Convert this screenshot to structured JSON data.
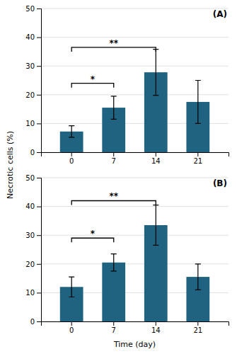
{
  "chart_data": [
    {
      "type": "bar",
      "title": "(A)",
      "categories": [
        "0",
        "7",
        "14",
        "21"
      ],
      "values": [
        7.2,
        15.5,
        27.8,
        17.5
      ],
      "errors": [
        2.0,
        4.0,
        8.0,
        7.5
      ],
      "color": "#1f6380",
      "ylabel": "Necrotic cells (%)",
      "ylim": [
        0,
        50
      ],
      "yticks": [
        0,
        10,
        20,
        30,
        40,
        50
      ],
      "grid": true,
      "annotations": [
        {
          "text": "*",
          "x1": "0",
          "x2": "7",
          "y": 24.0,
          "y_low": 22.5,
          "text_y": 24.5
        },
        {
          "text": "**",
          "x1": "0",
          "x2": "14",
          "y": 36.5,
          "y_low": 35.0,
          "text_y": 37.0
        }
      ]
    },
    {
      "type": "bar",
      "title": "(B)",
      "categories": [
        "0",
        "7",
        "14",
        "21"
      ],
      "values": [
        12.0,
        20.5,
        33.5,
        15.5
      ],
      "errors": [
        3.5,
        3.0,
        7.0,
        4.5
      ],
      "color": "#1f6380",
      "xlabel": "Time (day)",
      "ylim": [
        0,
        50
      ],
      "yticks": [
        0,
        10,
        20,
        30,
        40,
        50
      ],
      "grid": true,
      "annotations": [
        {
          "text": "*",
          "x1": "0",
          "x2": "7",
          "y": 29.0,
          "y_low": 27.5,
          "text_y": 29.5
        },
        {
          "text": "**",
          "x1": "0",
          "x2": "14",
          "y": 42.0,
          "y_low": 40.5,
          "text_y": 42.5
        }
      ]
    }
  ]
}
